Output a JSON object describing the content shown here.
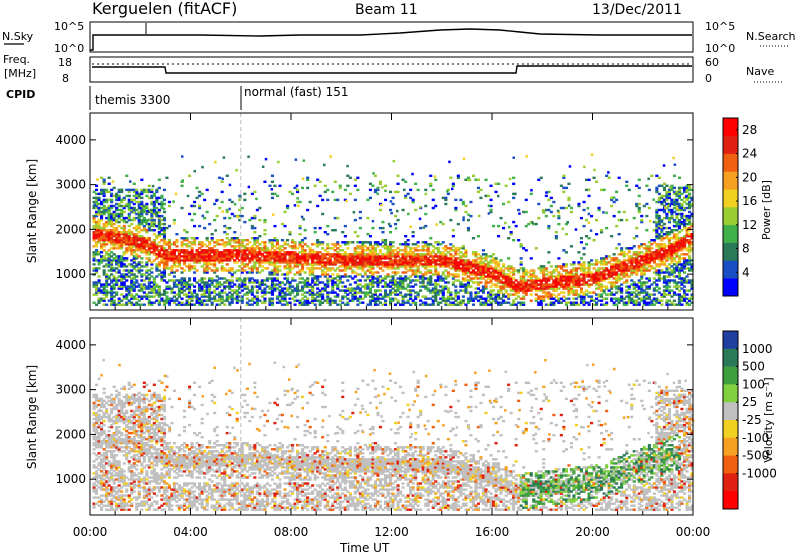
{
  "header": {
    "station": "Kerguelen (fitACF)",
    "beam": "Beam 11",
    "date": "13/Dec/2011"
  },
  "nsky_panel": {
    "left_label": "N.Sky",
    "right_label": "N.Search",
    "ticks_left": [
      "10^5",
      "10^0"
    ],
    "ticks_right": [
      "10^5",
      "10^0"
    ]
  },
  "freq_panel": {
    "left_label_1": "Freq.",
    "left_label_2": "[MHz]",
    "right_label": "Nave",
    "ticks_left": [
      "18",
      "8"
    ],
    "ticks_right": [
      "60",
      "0"
    ]
  },
  "cpid_panel": {
    "label": "CPID",
    "modes": [
      {
        "name": "themis 3300",
        "start_hour": 0
      },
      {
        "name": "normal (fast) 151",
        "start_hour": 6
      }
    ]
  },
  "chart_data": [
    {
      "type": "heatmap",
      "quantity": "Power",
      "ylabel": "Slant Range [km]",
      "yticks": [
        "1000",
        "2000",
        "3000",
        "4000"
      ],
      "ylim": [
        200,
        4600
      ],
      "xlim": [
        0,
        24
      ],
      "colorbar_label": "Power [dB]",
      "colorbar_ticks": [
        "4",
        "8",
        "12",
        "16",
        "20",
        "24",
        "28"
      ],
      "colorbar_range": [
        0,
        30
      ],
      "colors": [
        "#0000ff",
        "#1a4fc4",
        "#2a7a5a",
        "#3fb04a",
        "#9acd32",
        "#f0d020",
        "#f5a020",
        "#f06010",
        "#e02010",
        "#ff0000"
      ],
      "main_band_km": [
        [
          0,
          1900
        ],
        [
          2,
          1700
        ],
        [
          3,
          1400
        ],
        [
          6,
          1400
        ],
        [
          10,
          1300
        ],
        [
          14,
          1300
        ],
        [
          16,
          1000
        ],
        [
          17,
          700
        ],
        [
          20,
          900
        ],
        [
          23,
          1500
        ],
        [
          24,
          1800
        ]
      ]
    },
    {
      "type": "heatmap",
      "quantity": "Velocity",
      "ylabel": "Slant Range [km]",
      "yticks": [
        "1000",
        "2000",
        "3000",
        "4000"
      ],
      "ylim": [
        200,
        4600
      ],
      "xlim": [
        0,
        24
      ],
      "colorbar_label": "Velocity [m s⁻¹]",
      "colorbar_ticks": [
        "1000",
        "500",
        "100",
        "25",
        "-25",
        "-100",
        "-500",
        "-1000"
      ],
      "colors": [
        "#2040a0",
        "#2a7a5a",
        "#3fa040",
        "#80d040",
        "#c0c0c0",
        "#f0d020",
        "#f5a020",
        "#f06010",
        "#e02010",
        "#ff0000"
      ]
    }
  ],
  "xaxis": {
    "label": "Time UT",
    "ticks": [
      "00:00",
      "04:00",
      "08:00",
      "12:00",
      "16:00",
      "20:00",
      "00:00"
    ]
  }
}
